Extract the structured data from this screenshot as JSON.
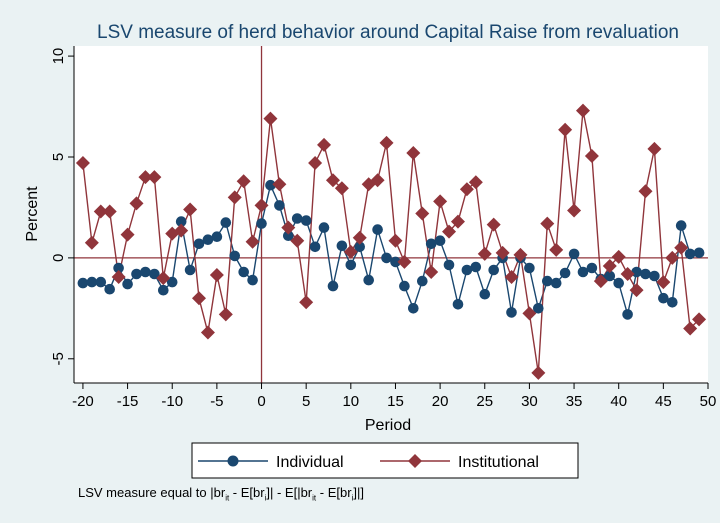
{
  "chart_data": {
    "type": "line",
    "title": "LSV measure of herd behavior around Capital Raise from revaluation",
    "xlabel": "Period",
    "ylabel": "Percent",
    "xlim": [
      -21,
      50
    ],
    "ylim": [
      -6.2,
      10.5
    ],
    "xticks": [
      -20,
      -15,
      -10,
      -5,
      0,
      5,
      10,
      15,
      20,
      25,
      30,
      35,
      40,
      45,
      50
    ],
    "yticks": [
      -5,
      0,
      5,
      10
    ],
    "grid": false,
    "reference_lines": {
      "x": 0,
      "y": 0
    },
    "legend_position": "bottom",
    "x": [
      -20,
      -19,
      -18,
      -17,
      -16,
      -15,
      -14,
      -13,
      -12,
      -11,
      -10,
      -9,
      -8,
      -7,
      -6,
      -5,
      -4,
      -3,
      -2,
      -1,
      0,
      1,
      2,
      3,
      4,
      5,
      6,
      7,
      8,
      9,
      10,
      11,
      12,
      13,
      14,
      15,
      16,
      17,
      18,
      19,
      20,
      21,
      22,
      23,
      24,
      25,
      26,
      27,
      28,
      29,
      30,
      31,
      32,
      33,
      34,
      35,
      36,
      37,
      38,
      39,
      40,
      41,
      42,
      43,
      44,
      45,
      46,
      47,
      48,
      49
    ],
    "series": [
      {
        "name": "Individual",
        "color": "#1a476f",
        "marker": "circle",
        "values": [
          -1.25,
          -1.2,
          -1.2,
          -1.55,
          -0.5,
          -1.3,
          -0.8,
          -0.7,
          -0.8,
          -1.6,
          -1.2,
          1.8,
          -0.6,
          0.7,
          0.9,
          1.05,
          1.75,
          0.1,
          -0.7,
          -1.1,
          1.7,
          3.6,
          2.6,
          1.1,
          1.95,
          1.85,
          0.55,
          1.5,
          -1.4,
          0.6,
          -0.35,
          0.55,
          -1.1,
          1.4,
          0.0,
          -0.2,
          -1.4,
          -2.5,
          -1.15,
          0.7,
          0.85,
          -0.35,
          -2.3,
          -0.6,
          -0.45,
          -1.8,
          -0.6,
          0.0,
          -2.7,
          0.0,
          -0.5,
          -2.5,
          -1.15,
          -1.25,
          -0.75,
          0.2,
          -0.7,
          -0.5,
          -1.05,
          -0.9,
          -1.25,
          -2.8,
          -0.7,
          -0.8,
          -0.9,
          -2.0,
          -2.2,
          1.6,
          0.2,
          0.25
        ]
      },
      {
        "name": "Institutional",
        "color": "#90353b",
        "marker": "diamond",
        "values": [
          4.7,
          0.75,
          2.3,
          2.3,
          -0.95,
          1.15,
          2.7,
          4.0,
          4.0,
          -1.0,
          1.2,
          1.35,
          2.4,
          -2.0,
          -3.7,
          -0.85,
          -2.8,
          3.0,
          3.8,
          0.8,
          2.6,
          6.9,
          3.65,
          1.5,
          0.85,
          -2.2,
          4.7,
          5.6,
          3.85,
          3.45,
          0.3,
          1.0,
          3.65,
          3.85,
          5.7,
          0.85,
          -0.2,
          5.2,
          2.2,
          -0.7,
          2.8,
          1.3,
          1.8,
          3.4,
          3.75,
          0.2,
          1.65,
          0.25,
          -0.95,
          0.15,
          -2.75,
          -5.7,
          1.7,
          0.4,
          6.35,
          2.35,
          7.3,
          5.05,
          -1.15,
          -0.4,
          0.05,
          -0.8,
          -1.6,
          3.3,
          5.4,
          -1.2,
          0.0,
          0.5,
          -3.5,
          -3.05
        ]
      }
    ]
  },
  "footnote": {
    "prefix": "LSV measure equal to |br",
    "sub1": "it",
    "part2": " - E[br",
    "sub2": "i",
    "part3": "]| - E[|br",
    "sub3": "it",
    "part4": " - E[br",
    "sub4": "i",
    "suffix": "]|]"
  }
}
